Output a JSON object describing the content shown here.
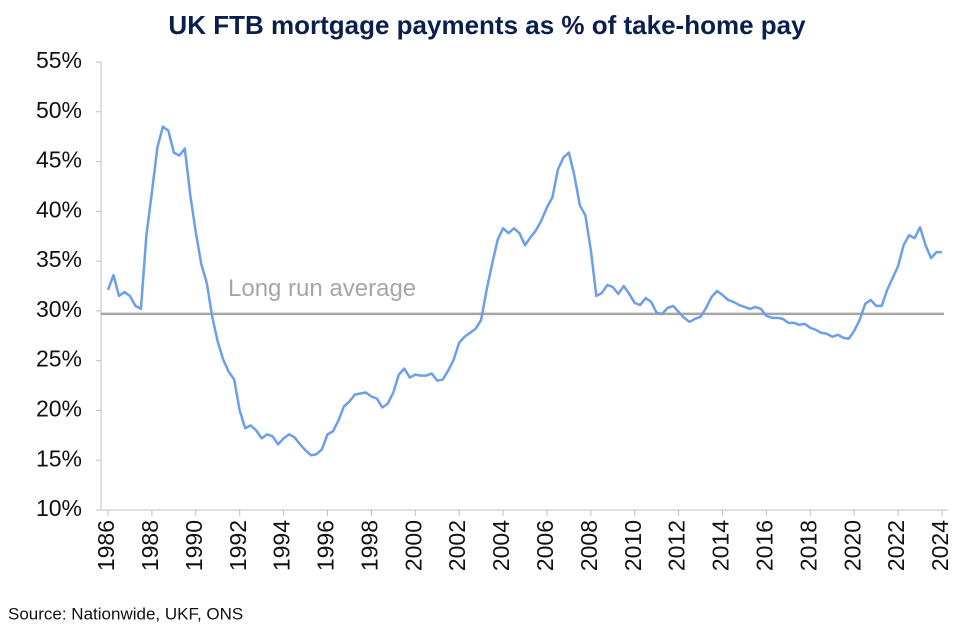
{
  "chart_data": {
    "type": "line",
    "title": "UK FTB mortgage payments as % of take-home pay",
    "source": "Source: Nationwide, UKF, ONS",
    "x": [
      1986,
      1986.25,
      1986.5,
      1986.75,
      1987,
      1987.25,
      1987.5,
      1987.75,
      1988,
      1988.25,
      1988.5,
      1988.75,
      1989,
      1989.25,
      1989.5,
      1989.75,
      1990,
      1990.25,
      1990.5,
      1990.75,
      1991,
      1991.25,
      1991.5,
      1991.75,
      1992,
      1992.25,
      1992.5,
      1992.75,
      1993,
      1993.25,
      1993.5,
      1993.75,
      1994,
      1994.25,
      1994.5,
      1994.75,
      1995,
      1995.25,
      1995.5,
      1995.75,
      1996,
      1996.25,
      1996.5,
      1996.75,
      1997,
      1997.25,
      1997.5,
      1997.75,
      1998,
      1998.25,
      1998.5,
      1998.75,
      1999,
      1999.25,
      1999.5,
      1999.75,
      2000,
      2000.25,
      2000.5,
      2000.75,
      2001,
      2001.25,
      2001.5,
      2001.75,
      2002,
      2002.25,
      2002.5,
      2002.75,
      2003,
      2003.25,
      2003.5,
      2003.75,
      2004,
      2004.25,
      2004.5,
      2004.75,
      2005,
      2005.25,
      2005.5,
      2005.75,
      2006,
      2006.25,
      2006.5,
      2006.75,
      2007,
      2007.25,
      2007.5,
      2007.75,
      2008,
      2008.25,
      2008.5,
      2008.75,
      2009,
      2009.25,
      2009.5,
      2009.75,
      2010,
      2010.25,
      2010.5,
      2010.75,
      2011,
      2011.25,
      2011.5,
      2011.75,
      2012,
      2012.25,
      2012.5,
      2012.75,
      2013,
      2013.25,
      2013.5,
      2013.75,
      2014,
      2014.25,
      2014.5,
      2014.75,
      2015,
      2015.25,
      2015.5,
      2015.75,
      2016,
      2016.25,
      2016.5,
      2016.75,
      2017,
      2017.25,
      2017.5,
      2017.75,
      2018,
      2018.25,
      2018.5,
      2018.75,
      2019,
      2019.25,
      2019.5,
      2019.75,
      2020,
      2020.25,
      2020.5,
      2020.75,
      2021,
      2021.25,
      2021.5,
      2021.75,
      2022,
      2022.25,
      2022.5,
      2022.75,
      2023,
      2023.25,
      2023.5,
      2023.75,
      2024
    ],
    "series": [
      {
        "name": "FTB mortgage payments",
        "color": "#6d9eeb",
        "values": [
          32.1,
          33.6,
          31.5,
          31.9,
          31.5,
          30.5,
          30.2,
          37.6,
          41.9,
          46.4,
          48.5,
          48.1,
          45.9,
          45.6,
          46.3,
          41.6,
          37.9,
          34.7,
          32.8,
          29.4,
          26.9,
          25.1,
          23.9,
          23.1,
          20.0,
          18.2,
          18.5,
          18.0,
          17.2,
          17.6,
          17.4,
          16.6,
          17.2,
          17.6,
          17.3,
          16.6,
          16.0,
          15.5,
          15.6,
          16.1,
          17.6,
          17.9,
          19.0,
          20.4,
          20.9,
          21.6,
          21.7,
          21.8,
          21.4,
          21.2,
          20.3,
          20.7,
          21.8,
          23.6,
          24.2,
          23.3,
          23.6,
          23.5,
          23.5,
          23.7,
          23.0,
          23.1,
          24.0,
          25.1,
          26.8,
          27.4,
          27.8,
          28.2,
          29.1,
          32.1,
          34.7,
          37.1,
          38.3,
          37.8,
          38.3,
          37.8,
          36.6,
          37.4,
          38.1,
          39.1,
          40.4,
          41.4,
          44.2,
          45.4,
          45.9,
          43.6,
          40.6,
          39.6,
          36.1,
          31.5,
          31.8,
          32.6,
          32.4,
          31.7,
          32.5,
          31.7,
          30.8,
          30.6,
          31.3,
          30.9,
          29.8,
          29.7,
          30.3,
          30.5,
          29.9,
          29.3,
          28.9,
          29.2,
          29.4,
          30.3,
          31.4,
          32.0,
          31.6,
          31.1,
          30.9,
          30.6,
          30.4,
          30.2,
          30.4,
          30.2,
          29.5,
          29.3,
          29.3,
          29.2,
          28.8,
          28.8,
          28.6,
          28.7,
          28.3,
          28.1,
          27.8,
          27.7,
          27.4,
          27.6,
          27.3,
          27.2,
          28.0,
          29.1,
          30.7,
          31.1,
          30.5,
          30.5,
          32.1,
          33.3,
          34.5,
          36.6,
          37.6,
          37.3,
          38.4,
          36.6,
          35.3,
          35.9,
          35.9
        ]
      }
    ],
    "reference_lines": [
      {
        "label": "Long run average",
        "value": 29.7,
        "color": "#a6a6a6"
      }
    ],
    "xlim": [
      1986,
      2024
    ],
    "xticks": [
      1986,
      1988,
      1990,
      1992,
      1994,
      1996,
      1998,
      2000,
      2002,
      2004,
      2006,
      2008,
      2010,
      2012,
      2014,
      2016,
      2018,
      2020,
      2022,
      2024
    ],
    "ylim": [
      10,
      55
    ],
    "yticks": [
      {
        "value": 10,
        "label": "10%"
      },
      {
        "value": 15,
        "label": "15%"
      },
      {
        "value": 20,
        "label": "20%"
      },
      {
        "value": 25,
        "label": "25%"
      },
      {
        "value": 30,
        "label": "30%"
      },
      {
        "value": 35,
        "label": "35%"
      },
      {
        "value": 40,
        "label": "40%"
      },
      {
        "value": 45,
        "label": "45%"
      },
      {
        "value": 50,
        "label": "50%"
      },
      {
        "value": 55,
        "label": "55%"
      }
    ],
    "grid": false
  }
}
